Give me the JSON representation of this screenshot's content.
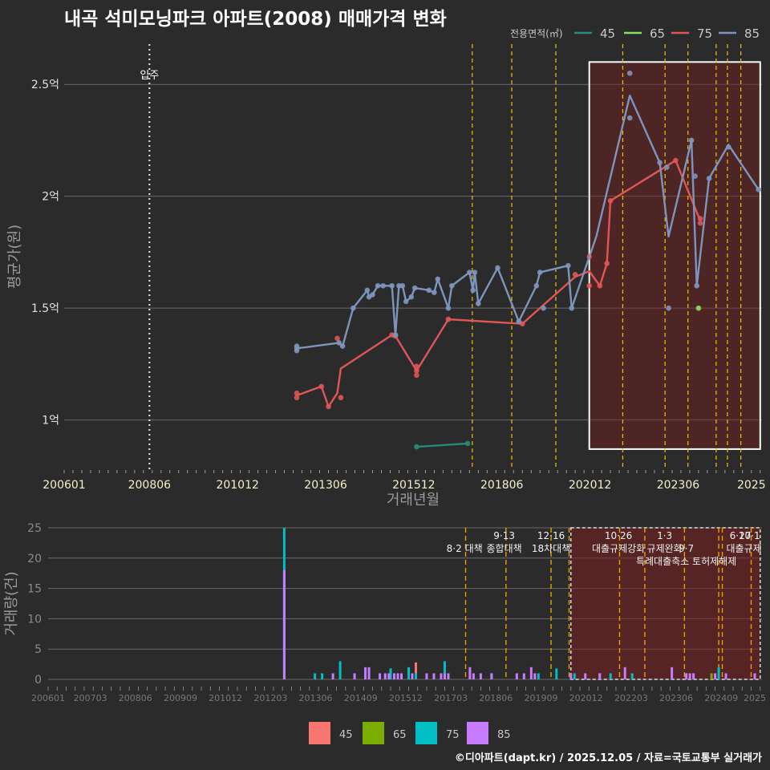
{
  "title": "내곡 석미모닝파크 아파트(2008) 매매가격 변화",
  "footer": "©디아파트(dapt.kr) / 2025.12.05 / 자료=국토교통부 실거래가",
  "colors": {
    "background": "#2b2b2b",
    "grid": "#6a6a6a",
    "area45": "#2a8a78",
    "area65": "#88e060",
    "area75": "#e05555",
    "area85": "#7d95bd",
    "bar45": "#f8766d",
    "bar65": "#7cae00",
    "bar75": "#00bfc4",
    "bar85": "#c77cff",
    "policy": "#f0c400",
    "highlight": "#7a1f1f"
  },
  "chart_data": [
    {
      "type": "line",
      "title": "내곡 석미모닝파크 아파트(2008) 매매가격 변화",
      "xlabel": "거래년월",
      "ylabel": "평균가(원)",
      "xlim": [
        2006.0,
        2025.8
      ],
      "ylim": [
        0.78,
        2.68
      ],
      "x_ticks": [
        "200601",
        "200806",
        "201012",
        "201306",
        "201512",
        "201806",
        "202012",
        "202306",
        "2025"
      ],
      "y_ticks": [
        {
          "value": 1.0,
          "label": "1억"
        },
        {
          "value": 1.5,
          "label": "1.5억"
        },
        {
          "value": 2.0,
          "label": "2억"
        },
        {
          "value": 2.5,
          "label": "2.5억"
        }
      ],
      "legend": {
        "title": "전용면적(㎡)",
        "position": "top-right",
        "entries": [
          "45",
          "65",
          "75",
          "85"
        ]
      },
      "move_in": {
        "x": 2008.42,
        "label": "입주"
      },
      "policy_lines": [
        2017.58,
        2018.7,
        2019.95,
        2021.85,
        2023.05,
        2023.7,
        2024.5,
        2024.82,
        2025.2
      ],
      "highlight_box": {
        "x0": 2020.9,
        "x1": 2025.75,
        "y0": 0.87,
        "y1": 2.6
      },
      "series": [
        {
          "name": "45",
          "points": [
            [
              2016.0,
              0.88
            ],
            [
              2017.45,
              0.895
            ]
          ],
          "line": [
            [
              2016.0,
              0.88
            ],
            [
              2017.45,
              0.895
            ]
          ]
        },
        {
          "name": "65",
          "points": [
            [
              2024.0,
              1.5
            ]
          ],
          "line": []
        },
        {
          "name": "75",
          "points": [
            [
              2012.6,
              1.12
            ],
            [
              2012.6,
              1.1
            ],
            [
              2013.3,
              1.15
            ],
            [
              2013.5,
              1.06
            ],
            [
              2013.75,
              1.365
            ],
            [
              2013.85,
              1.1
            ],
            [
              2015.3,
              1.38
            ],
            [
              2015.4,
              1.375
            ],
            [
              2016.0,
              1.24
            ],
            [
              2016.0,
              1.22
            ],
            [
              2016.0,
              1.2
            ],
            [
              2016.9,
              1.45
            ],
            [
              2019.0,
              1.43
            ],
            [
              2020.5,
              1.65
            ],
            [
              2020.9,
              1.6
            ],
            [
              2020.9,
              1.73
            ],
            [
              2021.2,
              1.6
            ],
            [
              2021.4,
              1.7
            ],
            [
              2021.5,
              1.98
            ],
            [
              2023.35,
              2.16
            ],
            [
              2024.05,
              1.9
            ],
            [
              2024.05,
              1.88
            ]
          ],
          "line": [
            [
              2012.6,
              1.11
            ],
            [
              2013.3,
              1.15
            ],
            [
              2013.5,
              1.06
            ],
            [
              2013.75,
              1.12
            ],
            [
              2013.85,
              1.23
            ],
            [
              2015.3,
              1.38
            ],
            [
              2015.4,
              1.375
            ],
            [
              2016.0,
              1.22
            ],
            [
              2016.9,
              1.45
            ],
            [
              2019.0,
              1.43
            ],
            [
              2020.5,
              1.64
            ],
            [
              2020.9,
              1.665
            ],
            [
              2021.2,
              1.6
            ],
            [
              2021.4,
              1.7
            ],
            [
              2021.5,
              1.98
            ],
            [
              2023.35,
              2.16
            ],
            [
              2024.05,
              1.89
            ]
          ]
        },
        {
          "name": "85",
          "points": [
            [
              2012.6,
              1.33
            ],
            [
              2012.6,
              1.31
            ],
            [
              2012.6,
              1.32
            ],
            [
              2013.8,
              1.345
            ],
            [
              2013.9,
              1.33
            ],
            [
              2014.2,
              1.5
            ],
            [
              2014.6,
              1.58
            ],
            [
              2014.65,
              1.55
            ],
            [
              2014.75,
              1.56
            ],
            [
              2014.9,
              1.6
            ],
            [
              2015.05,
              1.6
            ],
            [
              2015.3,
              1.6
            ],
            [
              2015.4,
              1.38
            ],
            [
              2015.5,
              1.6
            ],
            [
              2015.6,
              1.6
            ],
            [
              2015.7,
              1.53
            ],
            [
              2015.85,
              1.55
            ],
            [
              2015.95,
              1.59
            ],
            [
              2016.35,
              1.58
            ],
            [
              2016.5,
              1.57
            ],
            [
              2016.6,
              1.63
            ],
            [
              2016.9,
              1.5
            ],
            [
              2017.0,
              1.6
            ],
            [
              2017.5,
              1.66
            ],
            [
              2017.6,
              1.58
            ],
            [
              2017.65,
              1.66
            ],
            [
              2017.75,
              1.52
            ],
            [
              2018.3,
              1.68
            ],
            [
              2018.9,
              1.44
            ],
            [
              2019.4,
              1.6
            ],
            [
              2019.5,
              1.66
            ],
            [
              2019.6,
              1.5
            ],
            [
              2020.3,
              1.69
            ],
            [
              2020.4,
              1.5
            ],
            [
              2022.05,
              2.55
            ],
            [
              2022.05,
              2.35
            ],
            [
              2022.9,
              2.15
            ],
            [
              2023.1,
              2.13
            ],
            [
              2023.15,
              1.5
            ],
            [
              2023.8,
              2.25
            ],
            [
              2023.9,
              2.09
            ],
            [
              2023.95,
              1.6
            ],
            [
              2024.3,
              2.08
            ],
            [
              2024.85,
              2.22
            ],
            [
              2025.7,
              2.03
            ]
          ],
          "line": [
            [
              2012.6,
              1.32
            ],
            [
              2013.8,
              1.345
            ],
            [
              2013.9,
              1.33
            ],
            [
              2014.2,
              1.5
            ],
            [
              2014.6,
              1.58
            ],
            [
              2014.65,
              1.55
            ],
            [
              2014.75,
              1.56
            ],
            [
              2014.9,
              1.6
            ],
            [
              2015.05,
              1.6
            ],
            [
              2015.3,
              1.6
            ],
            [
              2015.4,
              1.38
            ],
            [
              2015.5,
              1.6
            ],
            [
              2015.6,
              1.6
            ],
            [
              2015.7,
              1.53
            ],
            [
              2015.85,
              1.55
            ],
            [
              2015.95,
              1.59
            ],
            [
              2016.35,
              1.58
            ],
            [
              2016.5,
              1.57
            ],
            [
              2016.6,
              1.63
            ],
            [
              2016.9,
              1.5
            ],
            [
              2017.0,
              1.6
            ],
            [
              2017.5,
              1.66
            ],
            [
              2017.6,
              1.58
            ],
            [
              2017.65,
              1.66
            ],
            [
              2017.75,
              1.52
            ],
            [
              2018.3,
              1.68
            ],
            [
              2018.9,
              1.44
            ],
            [
              2019.4,
              1.6
            ],
            [
              2019.5,
              1.66
            ],
            [
              2020.3,
              1.69
            ],
            [
              2020.4,
              1.5
            ],
            [
              2021.1,
              1.82
            ],
            [
              2022.05,
              2.45
            ],
            [
              2022.9,
              2.15
            ],
            [
              2023.15,
              1.82
            ],
            [
              2023.8,
              2.25
            ],
            [
              2023.95,
              1.6
            ],
            [
              2024.3,
              2.08
            ],
            [
              2024.85,
              2.23
            ],
            [
              2025.7,
              2.03
            ]
          ]
        }
      ]
    },
    {
      "type": "bar",
      "ylabel": "거래량(건)",
      "xlim": [
        2006.0,
        2025.8
      ],
      "ylim": [
        0,
        25
      ],
      "y_ticks": [
        0,
        5,
        10,
        15,
        20,
        25
      ],
      "x_ticks": [
        "200601",
        "200703",
        "200806",
        "200909",
        "201012",
        "201203",
        "201306",
        "201409",
        "201512",
        "201703",
        "201806",
        "201909",
        "202012",
        "202203",
        "202306",
        "202409",
        "2025"
      ],
      "legend": {
        "position": "bottom",
        "entries": [
          "45",
          "65",
          "75",
          "85"
        ]
      },
      "policy_lines": [
        2017.58,
        2018.7,
        2019.95,
        2020.45,
        2021.85,
        2022.55,
        2023.65,
        2024.6,
        2024.7,
        2025.5
      ],
      "highlight_box": {
        "x0": 2020.5,
        "x1": 2025.75,
        "y0": 0,
        "y1": 25
      },
      "annotations": [
        {
          "x": 2017.55,
          "row": 1,
          "label": "8·2 대책"
        },
        {
          "x": 2018.65,
          "row": 0,
          "label": "9·13"
        },
        {
          "x": 2018.65,
          "row": 1,
          "label": "종합대책"
        },
        {
          "x": 2019.95,
          "row": 0,
          "label": "12·16"
        },
        {
          "x": 2019.95,
          "row": 1,
          "label": "18차대책"
        },
        {
          "x": 2021.82,
          "row": 0,
          "label": "10·26"
        },
        {
          "x": 2021.82,
          "row": 1,
          "label": "대출규제강화"
        },
        {
          "x": 2023.1,
          "row": 0,
          "label": "1·3"
        },
        {
          "x": 2023.1,
          "row": 1,
          "label": "규제완화"
        },
        {
          "x": 2023.7,
          "row": 1,
          "label": "9·7"
        },
        {
          "x": 2023.7,
          "row": 2,
          "label": "특례대출축소 토허제해제"
        },
        {
          "x": 2025.2,
          "row": 0,
          "label": "6·27"
        },
        {
          "x": 2025.45,
          "row": 0,
          "label": "10·1"
        },
        {
          "x": 2025.3,
          "row": 1,
          "label": "대출규제"
        }
      ],
      "series": [
        {
          "name": "45",
          "bars": [
            [
              2016.2,
              2.8
            ],
            [
              2017.7,
              1.5
            ]
          ]
        },
        {
          "name": "65",
          "bars": [
            [
              2024.4,
              1
            ]
          ]
        },
        {
          "name": "75",
          "bars": [
            [
              2012.55,
              25
            ],
            [
              2013.4,
              1
            ],
            [
              2013.6,
              1
            ],
            [
              2014.1,
              3
            ],
            [
              2015.5,
              1.8
            ],
            [
              2016.0,
              2
            ],
            [
              2016.2,
              1
            ],
            [
              2017.0,
              3
            ],
            [
              2018.3,
              1
            ],
            [
              2019.6,
              1
            ],
            [
              2020.1,
              1.8
            ],
            [
              2020.6,
              1
            ],
            [
              2021.3,
              1
            ],
            [
              2021.6,
              1
            ],
            [
              2022.2,
              1
            ],
            [
              2023.9,
              1
            ],
            [
              2024.6,
              2
            ]
          ]
        },
        {
          "name": "85",
          "bars": [
            [
              2012.55,
              18
            ],
            [
              2013.9,
              1
            ],
            [
              2014.5,
              1
            ],
            [
              2014.8,
              2
            ],
            [
              2014.9,
              2
            ],
            [
              2015.2,
              1
            ],
            [
              2015.35,
              1
            ],
            [
              2015.45,
              1
            ],
            [
              2015.6,
              1
            ],
            [
              2015.7,
              1
            ],
            [
              2015.8,
              1
            ],
            [
              2016.1,
              1
            ],
            [
              2016.5,
              1
            ],
            [
              2016.7,
              1
            ],
            [
              2016.9,
              1
            ],
            [
              2017.0,
              1
            ],
            [
              2017.1,
              1
            ],
            [
              2017.7,
              2
            ],
            [
              2017.8,
              1
            ],
            [
              2018.0,
              1
            ],
            [
              2018.3,
              1
            ],
            [
              2019.0,
              1
            ],
            [
              2019.2,
              1
            ],
            [
              2019.4,
              2
            ],
            [
              2019.5,
              1
            ],
            [
              2020.5,
              1
            ],
            [
              2020.9,
              1
            ],
            [
              2021.3,
              1
            ],
            [
              2022.0,
              2
            ],
            [
              2023.3,
              2
            ],
            [
              2023.7,
              1
            ],
            [
              2023.8,
              1
            ],
            [
              2023.9,
              1
            ],
            [
              2024.5,
              1
            ],
            [
              2024.8,
              1
            ],
            [
              2025.6,
              1
            ]
          ]
        }
      ]
    }
  ]
}
